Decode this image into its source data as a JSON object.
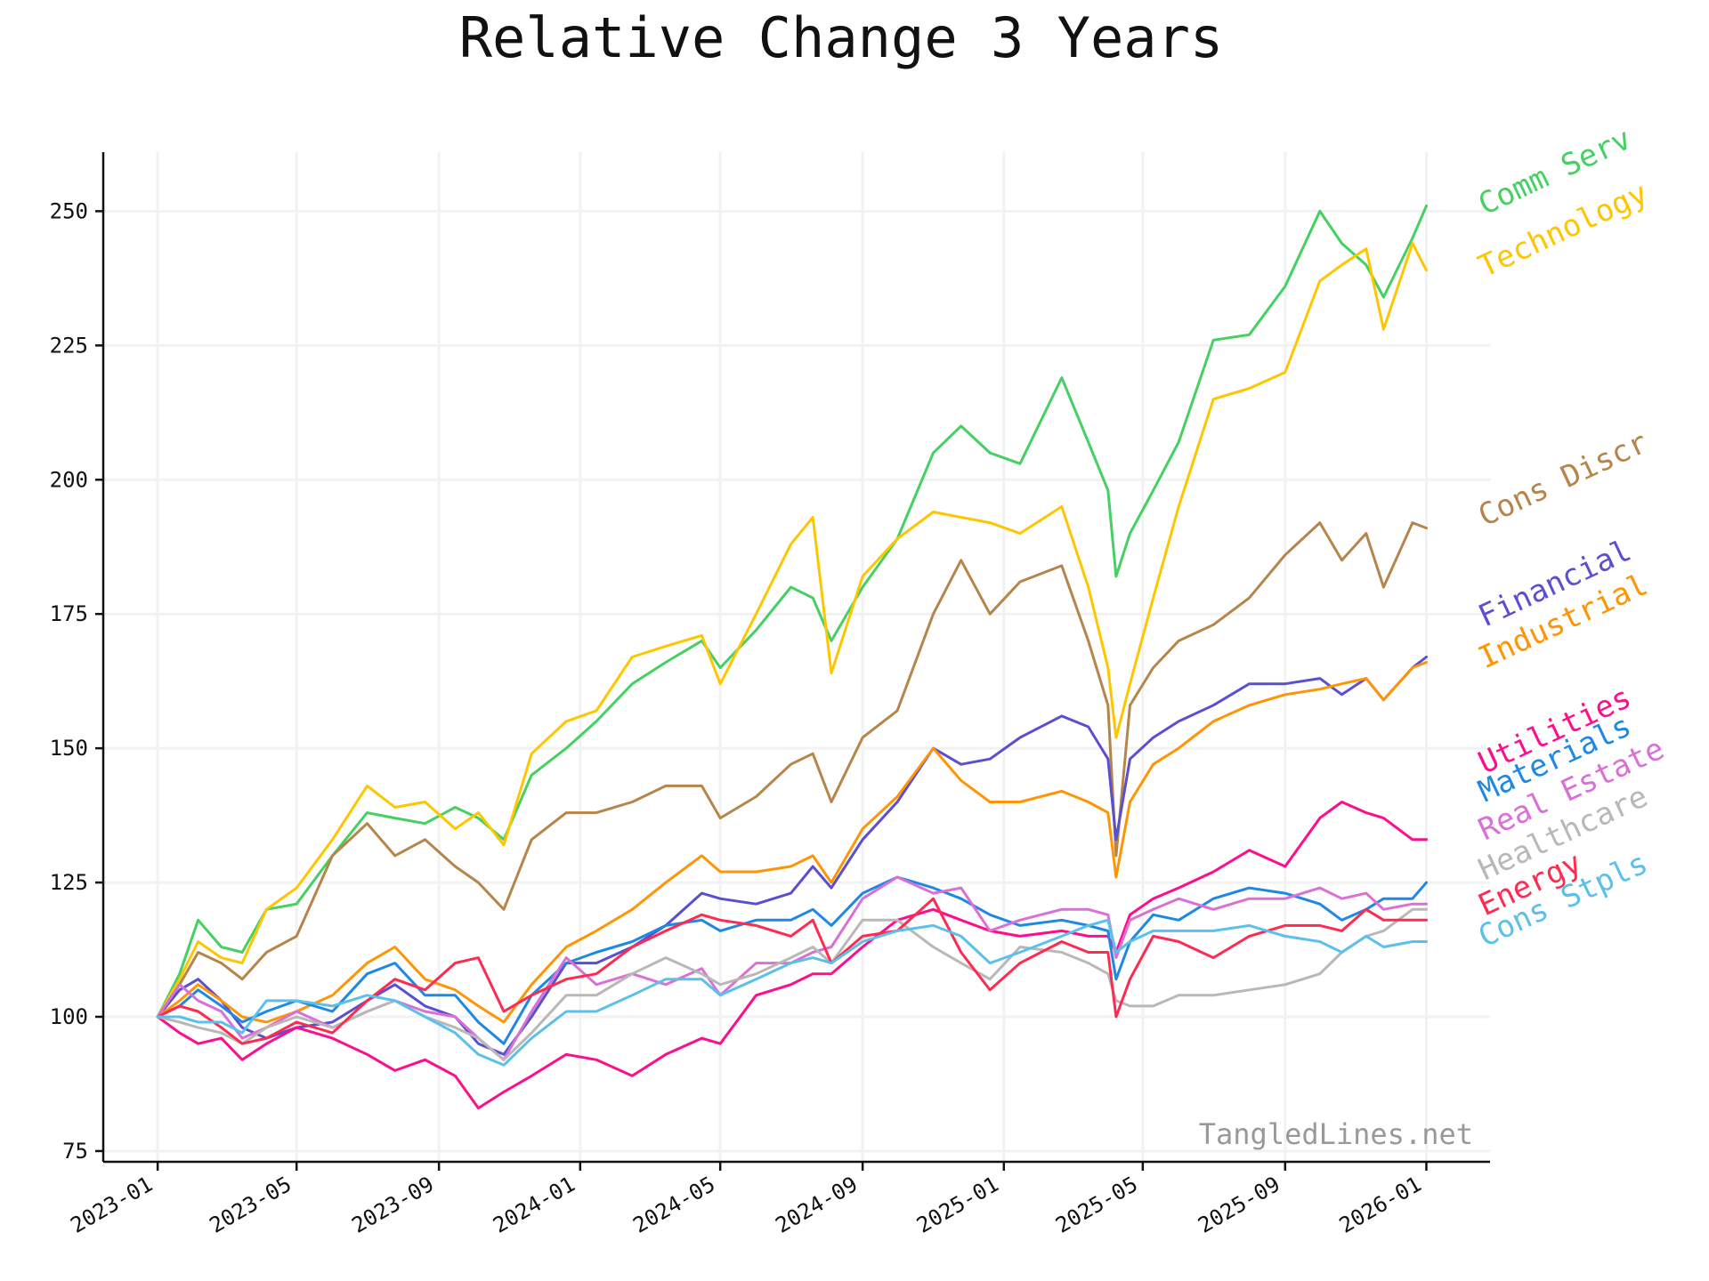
{
  "chart_data": {
    "type": "line",
    "title": "Relative Change 3 Years",
    "xlabel": "",
    "ylabel": "",
    "x_ticks": [
      "2023-01",
      "2023-05",
      "2023-09",
      "2024-01",
      "2024-05",
      "2024-09",
      "2025-01",
      "2025-05",
      "2025-09",
      "2026-01"
    ],
    "y_ticks": [
      75,
      100,
      125,
      150,
      175,
      200,
      225,
      250
    ],
    "xlim": [
      "2022-11-15",
      "2026-02-25"
    ],
    "ylim": [
      73,
      261
    ],
    "grid": true,
    "legend": "labels at right end of lines",
    "watermark": "TangledLines.net",
    "x": [
      "2023-01-01",
      "2023-01-20",
      "2023-02-05",
      "2023-02-25",
      "2023-03-15",
      "2023-04-05",
      "2023-05-01",
      "2023-06-01",
      "2023-07-01",
      "2023-07-25",
      "2023-08-20",
      "2023-09-15",
      "2023-10-05",
      "2023-10-27",
      "2023-11-20",
      "2023-12-20",
      "2024-01-15",
      "2024-02-15",
      "2024-03-15",
      "2024-04-15",
      "2024-05-01",
      "2024-06-01",
      "2024-07-01",
      "2024-07-20",
      "2024-08-05",
      "2024-09-01",
      "2024-10-01",
      "2024-11-01",
      "2024-11-25",
      "2024-12-20",
      "2025-01-15",
      "2025-02-20",
      "2025-03-15",
      "2025-04-01",
      "2025-04-08",
      "2025-04-20",
      "2025-05-10",
      "2025-06-01",
      "2025-07-01",
      "2025-08-01",
      "2025-09-01",
      "2025-10-01",
      "2025-10-20",
      "2025-11-10",
      "2025-11-25",
      "2025-12-20",
      "2026-01-01"
    ],
    "series": [
      {
        "name": "Comm Serv",
        "color": "#44d162",
        "values": [
          100,
          108,
          118,
          113,
          112,
          120,
          121,
          130,
          138,
          137,
          136,
          139,
          137,
          133,
          145,
          150,
          155,
          162,
          166,
          170,
          165,
          172,
          180,
          178,
          170,
          180,
          189,
          205,
          210,
          205,
          203,
          219,
          207,
          198,
          182,
          190,
          198,
          207,
          226,
          227,
          236,
          250,
          244,
          240,
          234,
          245,
          251
        ]
      },
      {
        "name": "Technology",
        "color": "#ffc600",
        "values": [
          100,
          107,
          114,
          111,
          110,
          120,
          124,
          133,
          143,
          139,
          140,
          135,
          138,
          132,
          149,
          155,
          157,
          167,
          169,
          171,
          162,
          175,
          188,
          193,
          164,
          182,
          189,
          194,
          193,
          192,
          190,
          195,
          180,
          165,
          152,
          162,
          178,
          195,
          215,
          217,
          220,
          237,
          240,
          243,
          228,
          244,
          239
        ]
      },
      {
        "name": "Cons Discr",
        "color": "#b5854b",
        "values": [
          100,
          106,
          112,
          110,
          107,
          112,
          115,
          130,
          136,
          130,
          133,
          128,
          125,
          120,
          133,
          138,
          138,
          140,
          143,
          143,
          137,
          141,
          147,
          149,
          140,
          152,
          157,
          175,
          185,
          175,
          181,
          184,
          170,
          158,
          130,
          158,
          165,
          170,
          173,
          178,
          186,
          192,
          185,
          190,
          180,
          192,
          191
        ]
      },
      {
        "name": "Financial",
        "color": "#5a4fd0",
        "values": [
          100,
          105,
          107,
          103,
          98,
          96,
          98,
          99,
          103,
          106,
          102,
          100,
          95,
          93,
          100,
          110,
          110,
          113,
          117,
          123,
          122,
          121,
          123,
          128,
          124,
          133,
          140,
          150,
          147,
          148,
          152,
          156,
          154,
          148,
          133,
          148,
          152,
          155,
          158,
          162,
          162,
          163,
          160,
          163,
          159,
          165,
          167
        ]
      },
      {
        "name": "Industrial",
        "color": "#ff9506",
        "values": [
          100,
          103,
          106,
          103,
          100,
          99,
          101,
          104,
          110,
          113,
          107,
          105,
          102,
          99,
          106,
          113,
          116,
          120,
          125,
          130,
          127,
          127,
          128,
          130,
          125,
          135,
          141,
          150,
          144,
          140,
          140,
          142,
          140,
          138,
          126,
          140,
          147,
          150,
          155,
          158,
          160,
          161,
          162,
          163,
          159,
          165,
          166
        ]
      },
      {
        "name": "Utilities",
        "color": "#ff0d8c",
        "values": [
          100,
          97,
          95,
          96,
          92,
          95,
          98,
          96,
          93,
          90,
          92,
          89,
          83,
          86,
          89,
          93,
          92,
          89,
          93,
          96,
          95,
          104,
          106,
          108,
          108,
          113,
          118,
          120,
          118,
          116,
          115,
          116,
          115,
          115,
          112,
          119,
          122,
          124,
          127,
          131,
          128,
          137,
          140,
          138,
          137,
          133,
          133
        ]
      },
      {
        "name": "Materials",
        "color": "#1e88e5",
        "values": [
          100,
          102,
          105,
          102,
          99,
          101,
          103,
          101,
          108,
          110,
          104,
          104,
          99,
          95,
          104,
          110,
          112,
          114,
          117,
          118,
          116,
          118,
          118,
          120,
          117,
          123,
          126,
          124,
          122,
          119,
          117,
          118,
          117,
          116,
          107,
          114,
          119,
          118,
          122,
          124,
          123,
          121,
          118,
          120,
          122,
          122,
          125
        ]
      },
      {
        "name": "Real Estate",
        "color": "#da70d6",
        "values": [
          100,
          106,
          103,
          101,
          96,
          98,
          101,
          98,
          101,
          103,
          101,
          100,
          96,
          92,
          101,
          111,
          106,
          108,
          106,
          109,
          104,
          110,
          110,
          112,
          113,
          122,
          126,
          123,
          124,
          116,
          118,
          120,
          120,
          119,
          111,
          118,
          120,
          122,
          120,
          122,
          122,
          124,
          122,
          123,
          120,
          121,
          121
        ]
      },
      {
        "name": "Healthcare",
        "color": "#b8b8b8",
        "values": [
          100,
          99,
          98,
          97,
          95,
          98,
          100,
          98,
          101,
          103,
          100,
          98,
          96,
          92,
          97,
          104,
          104,
          108,
          111,
          108,
          106,
          108,
          111,
          113,
          110,
          118,
          118,
          113,
          110,
          107,
          113,
          112,
          110,
          108,
          103,
          102,
          102,
          104,
          104,
          105,
          106,
          108,
          112,
          115,
          116,
          120,
          120
        ]
      },
      {
        "name": "Energy",
        "color": "#ff2a4f",
        "values": [
          100,
          102,
          101,
          98,
          95,
          96,
          99,
          97,
          103,
          107,
          105,
          110,
          111,
          101,
          104,
          107,
          108,
          113,
          116,
          119,
          118,
          117,
          115,
          118,
          110,
          115,
          116,
          122,
          112,
          105,
          110,
          114,
          112,
          112,
          100,
          107,
          115,
          114,
          111,
          115,
          117,
          117,
          116,
          120,
          118,
          118,
          118
        ]
      },
      {
        "name": "Cons Stpls",
        "color": "#5bc0eb",
        "values": [
          100,
          100,
          99,
          99,
          97,
          103,
          103,
          102,
          104,
          103,
          100,
          97,
          93,
          91,
          96,
          101,
          101,
          104,
          107,
          107,
          104,
          107,
          110,
          111,
          110,
          114,
          116,
          117,
          115,
          110,
          112,
          115,
          117,
          118,
          112,
          114,
          116,
          116,
          116,
          117,
          115,
          114,
          112,
          115,
          113,
          114,
          114
        ]
      }
    ]
  }
}
